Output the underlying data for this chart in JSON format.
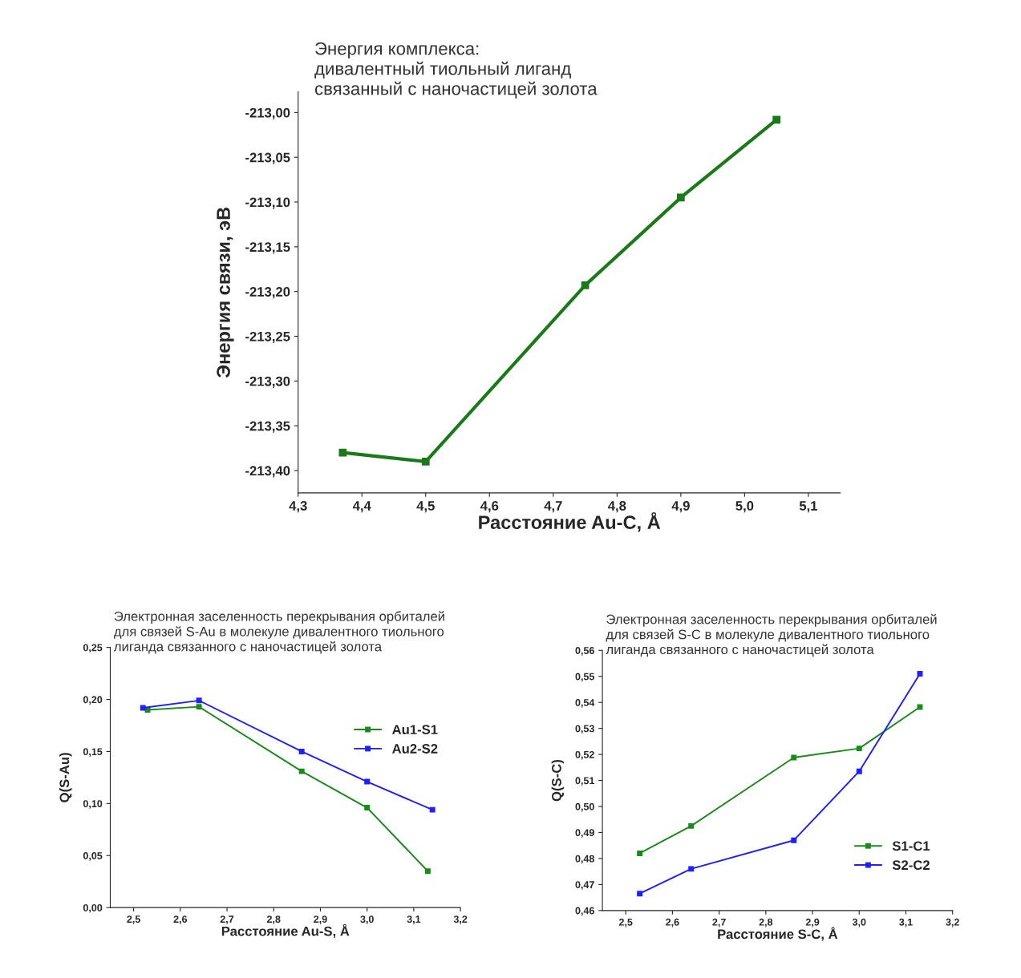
{
  "chart_data": [
    {
      "type": "line",
      "title": "Энергия комплекса:\nдивалентный тиольный лиганд\nсвязанный с наночастицей золота",
      "xlabel": "Расстояние Au-C, Å",
      "ylabel": "Энергия связи, эВ",
      "series": [
        {
          "color": "#1a7a1a",
          "x": [
            4.37,
            4.5,
            4.75,
            4.9,
            5.05
          ],
          "values": [
            -213.38,
            -213.39,
            -213.193,
            -213.095,
            -213.008
          ]
        }
      ],
      "xlim": [
        4.3,
        5.15
      ],
      "ylim": [
        -213.425,
        -212.977
      ],
      "xticks": [
        {
          "value": 4.3,
          "label": "4,3"
        },
        {
          "value": 4.4,
          "label": "4,4"
        },
        {
          "value": 4.5,
          "label": "4,5"
        },
        {
          "value": 4.6,
          "label": "4,6"
        },
        {
          "value": 4.7,
          "label": "4,7"
        },
        {
          "value": 4.8,
          "label": "4,8"
        },
        {
          "value": 4.9,
          "label": "4,9"
        },
        {
          "value": 5.0,
          "label": "5,0"
        },
        {
          "value": 5.1,
          "label": "5,1"
        }
      ],
      "yticks": [
        {
          "value": -213.4,
          "label": "-213,40"
        },
        {
          "value": -213.35,
          "label": "-213,35"
        },
        {
          "value": -213.3,
          "label": "-213,30"
        },
        {
          "value": -213.25,
          "label": "-213,25"
        },
        {
          "value": -213.2,
          "label": "-213,20"
        },
        {
          "value": -213.15,
          "label": "-213,15"
        },
        {
          "value": -213.1,
          "label": "-213,10"
        },
        {
          "value": -213.05,
          "label": "-213,05"
        },
        {
          "value": -213.0,
          "label": "-213,00"
        }
      ],
      "marker": "square",
      "line_style": "solid",
      "grid": false,
      "legend": false
    },
    {
      "type": "line",
      "title": "Электронная заселенность перекрывания орбиталей\nдля связей S-Au в молекуле дивалентного тиольного\nлиганда связанного с наночастицей золота",
      "xlabel": "Расстояние Au-S, Å",
      "ylabel": "Q(S-Au)",
      "series": [
        {
          "name": "Au1-S1",
          "color": "#1a8a1a",
          "x": [
            2.53,
            2.64,
            2.86,
            3.0,
            3.13
          ],
          "values": [
            0.19,
            0.193,
            0.131,
            0.096,
            0.035
          ]
        },
        {
          "name": "Au2-S2",
          "color": "#1f1fff",
          "x": [
            2.52,
            2.64,
            2.86,
            3.0,
            3.14
          ],
          "values": [
            0.192,
            0.199,
            0.15,
            0.121,
            0.094
          ]
        }
      ],
      "xlim": [
        2.45,
        3.2
      ],
      "ylim": [
        0,
        0.25
      ],
      "xticks": [
        {
          "value": 2.5,
          "label": "2,5"
        },
        {
          "value": 2.6,
          "label": "2,6"
        },
        {
          "value": 2.7,
          "label": "2,7"
        },
        {
          "value": 2.8,
          "label": "2,8"
        },
        {
          "value": 2.9,
          "label": "2,9"
        },
        {
          "value": 3.0,
          "label": "3,0"
        },
        {
          "value": 3.1,
          "label": "3,1"
        },
        {
          "value": 3.2,
          "label": "3,2"
        }
      ],
      "yticks": [
        {
          "value": 0,
          "label": "0,00"
        },
        {
          "value": 0.05,
          "label": "0,05"
        },
        {
          "value": 0.1,
          "label": "0,10"
        },
        {
          "value": 0.15,
          "label": "0,15"
        },
        {
          "value": 0.2,
          "label": "0,20"
        },
        {
          "value": 0.25,
          "label": "0,25"
        }
      ],
      "marker": "square",
      "line_style": "solid",
      "grid": false,
      "legend": "top right"
    },
    {
      "type": "line",
      "title": "Электронная заселенность перекрывания орбиталей\nдля связей S-C в молекуле дивалентного тиольного\nлиганда связанного с наночастицей золота",
      "xlabel": "Расстояние S-C, Å",
      "ylabel": "Q(S-C)",
      "series": [
        {
          "name": "S1-C1",
          "color": "#1a8a1a",
          "x": [
            2.53,
            2.64,
            2.86,
            3.0,
            3.13
          ],
          "values": [
            0.482,
            0.4925,
            0.5188,
            0.5223,
            0.5382
          ]
        },
        {
          "name": "S2-C2",
          "color": "#1f1fff",
          "x": [
            2.53,
            2.64,
            2.86,
            3.0,
            3.13
          ],
          "values": [
            0.4665,
            0.476,
            0.487,
            0.5135,
            0.551
          ]
        }
      ],
      "xlim": [
        2.45,
        3.2
      ],
      "ylim": [
        0.46,
        0.56
      ],
      "xticks": [
        {
          "value": 2.5,
          "label": "2,5"
        },
        {
          "value": 2.6,
          "label": "2,6"
        },
        {
          "value": 2.7,
          "label": "2,7"
        },
        {
          "value": 2.8,
          "label": "2,8"
        },
        {
          "value": 2.9,
          "label": "2,9"
        },
        {
          "value": 3.0,
          "label": "3,0"
        },
        {
          "value": 3.1,
          "label": "3,1"
        },
        {
          "value": 3.2,
          "label": "3,2"
        }
      ],
      "yticks": [
        {
          "value": 0.46,
          "label": "0,46"
        },
        {
          "value": 0.47,
          "label": "0,47"
        },
        {
          "value": 0.48,
          "label": "0,48"
        },
        {
          "value": 0.49,
          "label": "0,49"
        },
        {
          "value": 0.5,
          "label": "0,50"
        },
        {
          "value": 0.51,
          "label": "0,51"
        },
        {
          "value": 0.52,
          "label": "0,52"
        },
        {
          "value": 0.53,
          "label": "0,53"
        },
        {
          "value": 0.54,
          "label": "0,54"
        },
        {
          "value": 0.55,
          "label": "0,55"
        },
        {
          "value": 0.56,
          "label": "0,56"
        }
      ],
      "marker": "square",
      "line_style": "solid",
      "grid": false,
      "legend": "bottom right"
    }
  ]
}
